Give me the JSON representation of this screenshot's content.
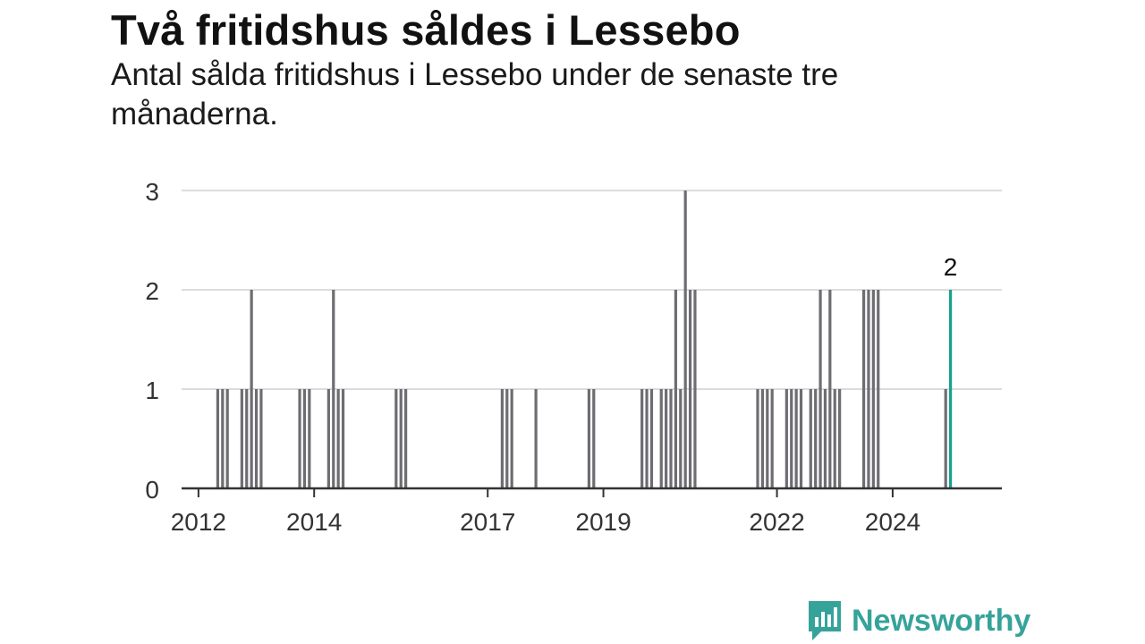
{
  "header": {
    "title": "Två fritidshus såldes i Lessebo",
    "subtitle": "Antal sålda fritidshus i Lessebo under de senaste tre månaderna."
  },
  "brand": {
    "name": "Newsworthy",
    "color": "#36a39a",
    "icon": "bar-chart-speech-bubble-icon"
  },
  "chart_data": {
    "type": "bar",
    "title": "Två fritidshus såldes i Lessebo",
    "subtitle": "Antal sålda fritidshus i Lessebo under de senaste tre månaderna.",
    "xlabel": "",
    "ylabel": "",
    "ylim": [
      0,
      3
    ],
    "yticks": [
      0,
      1,
      2,
      3
    ],
    "xticks": [
      "2012",
      "2014",
      "2017",
      "2019",
      "2022",
      "2024"
    ],
    "grid": true,
    "bar_color": "#6d6d72",
    "highlight_color": "#16a08f",
    "highlight_label": "2",
    "series": [
      {
        "values": [
          {
            "x": "2012-05",
            "y": 1
          },
          {
            "x": "2012-06",
            "y": 1
          },
          {
            "x": "2012-07",
            "y": 1
          },
          {
            "x": "2012-10",
            "y": 1
          },
          {
            "x": "2012-11",
            "y": 1
          },
          {
            "x": "2012-12",
            "y": 2
          },
          {
            "x": "2013-01",
            "y": 1
          },
          {
            "x": "2013-02",
            "y": 1
          },
          {
            "x": "2013-10",
            "y": 1
          },
          {
            "x": "2013-11",
            "y": 1
          },
          {
            "x": "2013-12",
            "y": 1
          },
          {
            "x": "2014-04",
            "y": 1
          },
          {
            "x": "2014-05",
            "y": 2
          },
          {
            "x": "2014-06",
            "y": 1
          },
          {
            "x": "2014-07",
            "y": 1
          },
          {
            "x": "2015-06",
            "y": 1
          },
          {
            "x": "2015-07",
            "y": 1
          },
          {
            "x": "2015-08",
            "y": 1
          },
          {
            "x": "2017-04",
            "y": 1
          },
          {
            "x": "2017-05",
            "y": 1
          },
          {
            "x": "2017-06",
            "y": 1
          },
          {
            "x": "2017-11",
            "y": 1
          },
          {
            "x": "2018-10",
            "y": 1
          },
          {
            "x": "2018-11",
            "y": 1
          },
          {
            "x": "2019-09",
            "y": 1
          },
          {
            "x": "2019-10",
            "y": 1
          },
          {
            "x": "2019-11",
            "y": 1
          },
          {
            "x": "2020-01",
            "y": 1
          },
          {
            "x": "2020-02",
            "y": 1
          },
          {
            "x": "2020-03",
            "y": 1
          },
          {
            "x": "2020-04",
            "y": 2
          },
          {
            "x": "2020-05",
            "y": 1
          },
          {
            "x": "2020-06",
            "y": 3
          },
          {
            "x": "2020-07",
            "y": 2
          },
          {
            "x": "2020-08",
            "y": 2
          },
          {
            "x": "2021-09",
            "y": 1
          },
          {
            "x": "2021-10",
            "y": 1
          },
          {
            "x": "2021-11",
            "y": 1
          },
          {
            "x": "2021-12",
            "y": 1
          },
          {
            "x": "2022-03",
            "y": 1
          },
          {
            "x": "2022-04",
            "y": 1
          },
          {
            "x": "2022-05",
            "y": 1
          },
          {
            "x": "2022-06",
            "y": 1
          },
          {
            "x": "2022-08",
            "y": 1
          },
          {
            "x": "2022-09",
            "y": 1
          },
          {
            "x": "2022-10",
            "y": 2
          },
          {
            "x": "2022-11",
            "y": 1
          },
          {
            "x": "2022-12",
            "y": 2
          },
          {
            "x": "2023-01",
            "y": 1
          },
          {
            "x": "2023-02",
            "y": 1
          },
          {
            "x": "2023-07",
            "y": 2
          },
          {
            "x": "2023-08",
            "y": 2
          },
          {
            "x": "2023-09",
            "y": 2
          },
          {
            "x": "2023-10",
            "y": 2
          },
          {
            "x": "2024-12",
            "y": 1
          },
          {
            "x": "2025-01",
            "y": 2,
            "highlight": true
          }
        ]
      }
    ]
  }
}
